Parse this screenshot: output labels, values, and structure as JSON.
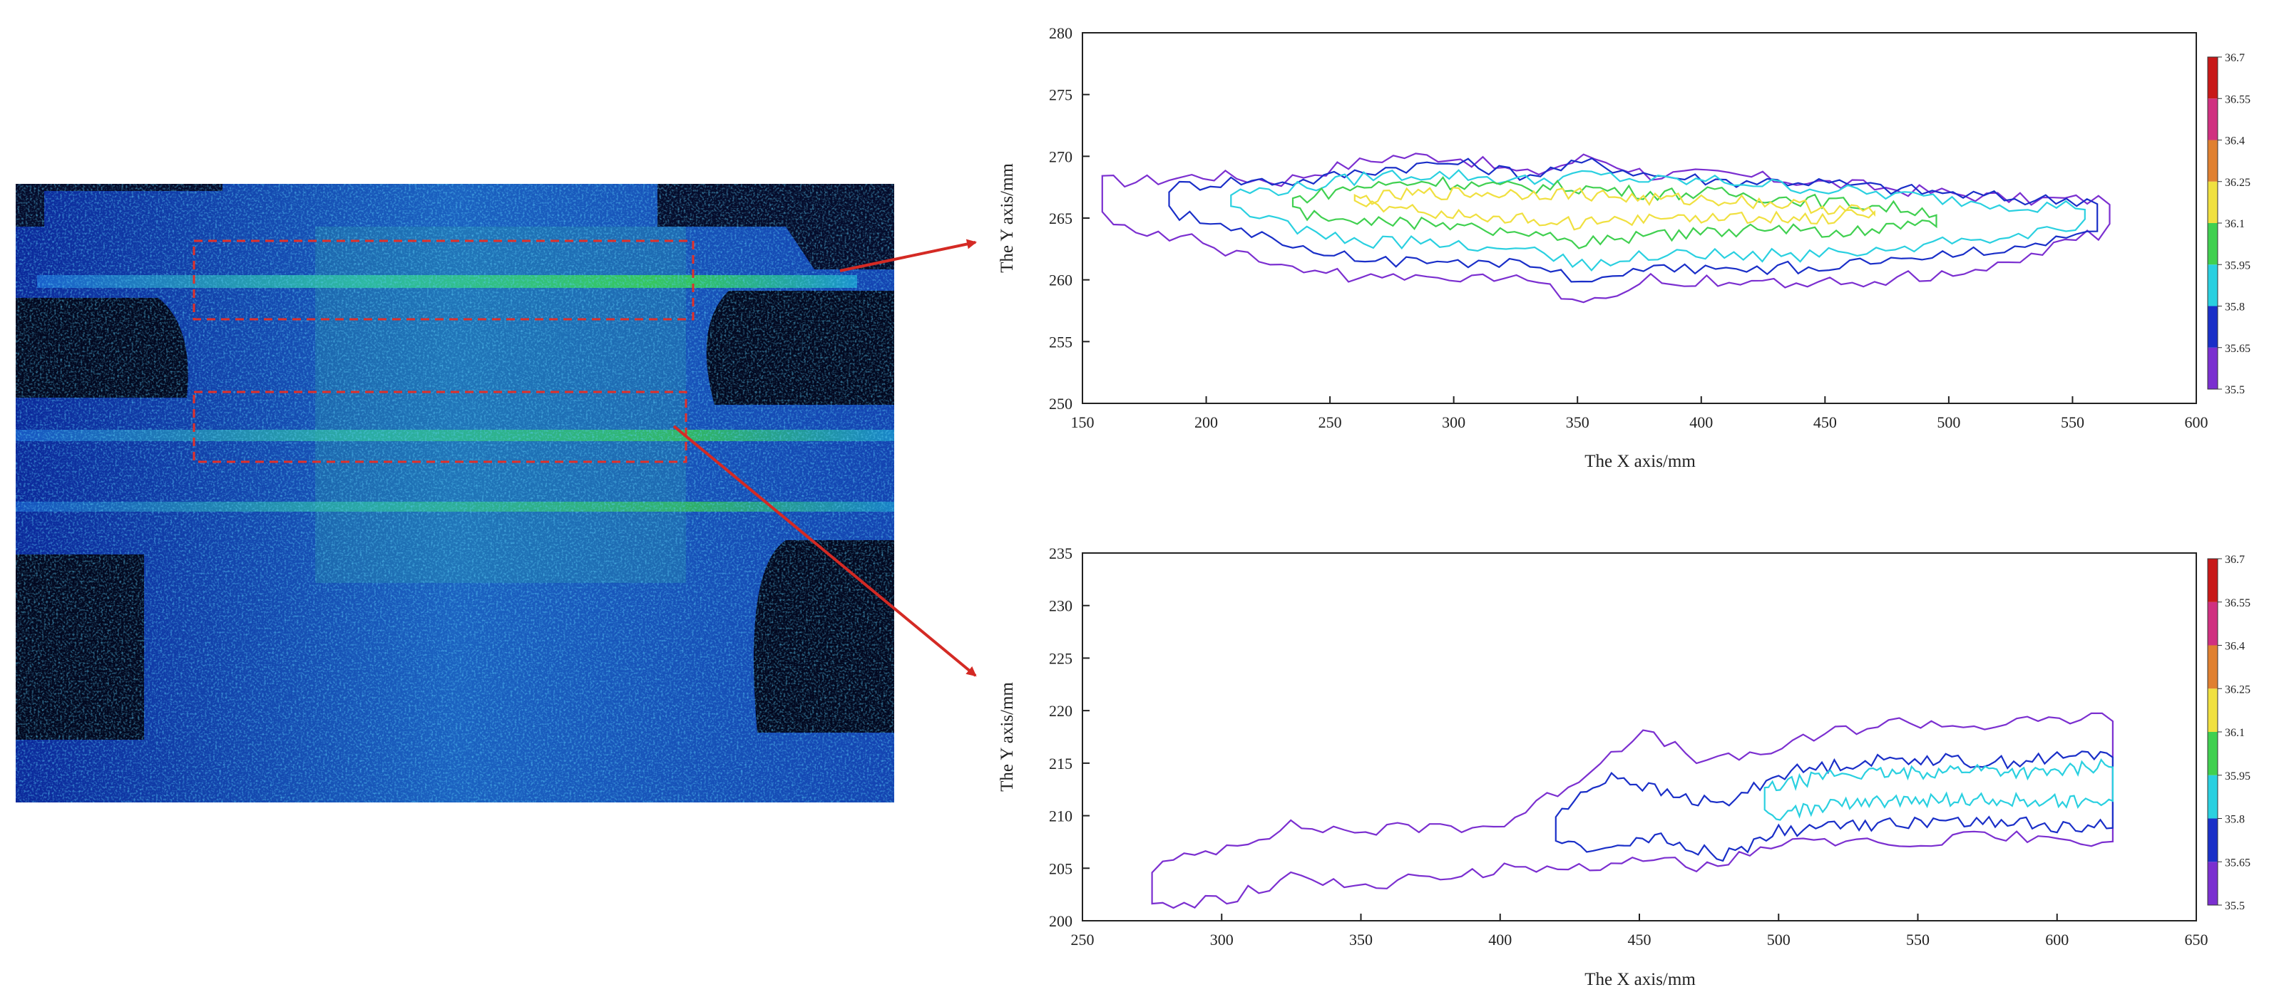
{
  "thermal_image": {
    "colors": {
      "background": "#050b2a",
      "cold": "#0a2fb0",
      "mid": "#1a78d8",
      "warm": "#2fd4a8",
      "hot": "#3cdc3c"
    },
    "roi_color": "#e0302a",
    "arrow_color": "#d42a24"
  },
  "chart_data": [
    {
      "type": "contour",
      "xlabel": "The X axis/mm",
      "ylabel": "The Y axis/mm",
      "xlim": [
        150,
        600
      ],
      "ylim": [
        250,
        280
      ],
      "xticks": [
        "150",
        "200",
        "250",
        "300",
        "350",
        "400",
        "450",
        "500",
        "550",
        "600"
      ],
      "yticks": [
        "250",
        "255",
        "260",
        "265",
        "270",
        "275",
        "280"
      ],
      "colorbar": {
        "levels": [
          "35.5",
          "35.65",
          "35.8",
          "35.95",
          "36.1",
          "36.25",
          "36.4",
          "36.55",
          "36.7"
        ],
        "colors": [
          "#7b2fd0",
          "#1a2fc8",
          "#2ad0e0",
          "#40d050",
          "#f0e040",
          "#e08030",
          "#d03080",
          "#c81818"
        ]
      },
      "contours": [
        {
          "level": 35.5,
          "color": "#7b2fd0",
          "x": [
            158,
            175,
            200,
            230,
            250,
            275,
            300,
            330,
            355,
            380,
            410,
            440,
            470,
            500,
            530,
            565
          ],
          "upper": [
            268,
            268,
            268.5,
            268,
            269,
            270,
            270,
            268.5,
            270,
            268.5,
            268.5,
            268,
            267.5,
            267,
            266.5,
            266.5
          ],
          "lower": [
            265,
            264,
            263,
            261,
            260.5,
            260,
            260,
            260,
            258,
            260,
            260,
            259.5,
            260,
            260.5,
            262,
            264
          ]
        },
        {
          "level": 35.65,
          "color": "#1a2fc8",
          "x": [
            185,
            210,
            240,
            270,
            300,
            330,
            355,
            380,
            410,
            440,
            470,
            500,
            530,
            560
          ],
          "upper": [
            267.5,
            268,
            268,
            269,
            269.5,
            268.5,
            269.5,
            268.5,
            268,
            268,
            267.5,
            267,
            266.5,
            266.5
          ],
          "lower": [
            265.5,
            264,
            262.5,
            261.5,
            261.5,
            261.5,
            259.5,
            261,
            261,
            261,
            261.5,
            262,
            262.5,
            264
          ]
        },
        {
          "level": 35.8,
          "color": "#2ad0e0",
          "x": [
            210,
            240,
            270,
            300,
            330,
            355,
            380,
            410,
            440,
            470,
            500,
            530,
            555
          ],
          "upper": [
            267,
            267.5,
            268.5,
            268.5,
            268,
            268.5,
            268,
            268,
            267.5,
            267,
            266.5,
            266,
            266
          ],
          "lower": [
            265.5,
            264,
            263,
            263,
            262.5,
            261,
            262,
            262,
            262,
            262.5,
            263,
            263.5,
            264.5
          ]
        },
        {
          "level": 35.95,
          "color": "#40d050",
          "x": [
            235,
            260,
            290,
            320,
            350,
            380,
            410,
            440,
            470,
            495
          ],
          "upper": [
            266.5,
            267.5,
            268,
            267.5,
            267.5,
            267,
            267,
            266.5,
            266,
            265.5
          ],
          "lower": [
            265.5,
            265,
            264.5,
            264,
            263,
            263.5,
            264,
            264,
            264,
            264.5
          ]
        },
        {
          "level": 36.1,
          "color": "#f0e040",
          "x": [
            260,
            290,
            320,
            350,
            380,
            410,
            440,
            470
          ],
          "upper": [
            266.5,
            267,
            267,
            267,
            266.5,
            266.5,
            266,
            265.5
          ],
          "lower": [
            266,
            265.5,
            265,
            264.5,
            265,
            265,
            265,
            265.2
          ]
        }
      ]
    },
    {
      "type": "contour",
      "xlabel": "The X axis/mm",
      "ylabel": "The Y axis/mm",
      "xlim": [
        250,
        650
      ],
      "ylim": [
        200,
        235
      ],
      "xticks": [
        "250",
        "300",
        "350",
        "400",
        "450",
        "500",
        "550",
        "600",
        "650"
      ],
      "yticks": [
        "200",
        "205",
        "210",
        "215",
        "220",
        "225",
        "230",
        "235"
      ],
      "colorbar": {
        "levels": [
          "35.5",
          "35.65",
          "35.8",
          "35.95",
          "36.1",
          "36.25",
          "36.4",
          "36.55",
          "36.7"
        ],
        "colors": [
          "#7b2fd0",
          "#1a2fc8",
          "#2ad0e0",
          "#40d050",
          "#f0e040",
          "#e08030",
          "#d03080",
          "#c81818"
        ]
      },
      "contours": [
        {
          "level": 35.5,
          "color": "#7b2fd0",
          "x": [
            275,
            300,
            325,
            350,
            375,
            400,
            425,
            450,
            475,
            495,
            520,
            545,
            570,
            595,
            620
          ],
          "upper": [
            205,
            207,
            209,
            208.5,
            209,
            209,
            213,
            218,
            215,
            216,
            218,
            219,
            218.5,
            219,
            219.5
          ],
          "lower": [
            201,
            202,
            204,
            203.5,
            204,
            205,
            205,
            206,
            205,
            207,
            207.5,
            207.5,
            208,
            208,
            207
          ]
        },
        {
          "level": 35.65,
          "color": "#1a2fc8",
          "x": [
            420,
            440,
            460,
            480,
            500,
            525,
            550,
            575,
            600,
            620
          ],
          "upper": [
            210,
            214,
            212,
            211,
            214,
            215,
            215.5,
            215,
            215.5,
            216
          ],
          "lower": [
            207,
            207,
            208,
            206,
            208.5,
            209,
            209.5,
            209.5,
            209,
            209
          ]
        },
        {
          "level": 35.8,
          "color": "#2ad0e0",
          "x": [
            495,
            520,
            545,
            570,
            595,
            620
          ],
          "upper": [
            212.5,
            214,
            214,
            214.5,
            214,
            215
          ],
          "lower": [
            210,
            211,
            211.5,
            211.5,
            211.5,
            211
          ]
        }
      ]
    }
  ]
}
